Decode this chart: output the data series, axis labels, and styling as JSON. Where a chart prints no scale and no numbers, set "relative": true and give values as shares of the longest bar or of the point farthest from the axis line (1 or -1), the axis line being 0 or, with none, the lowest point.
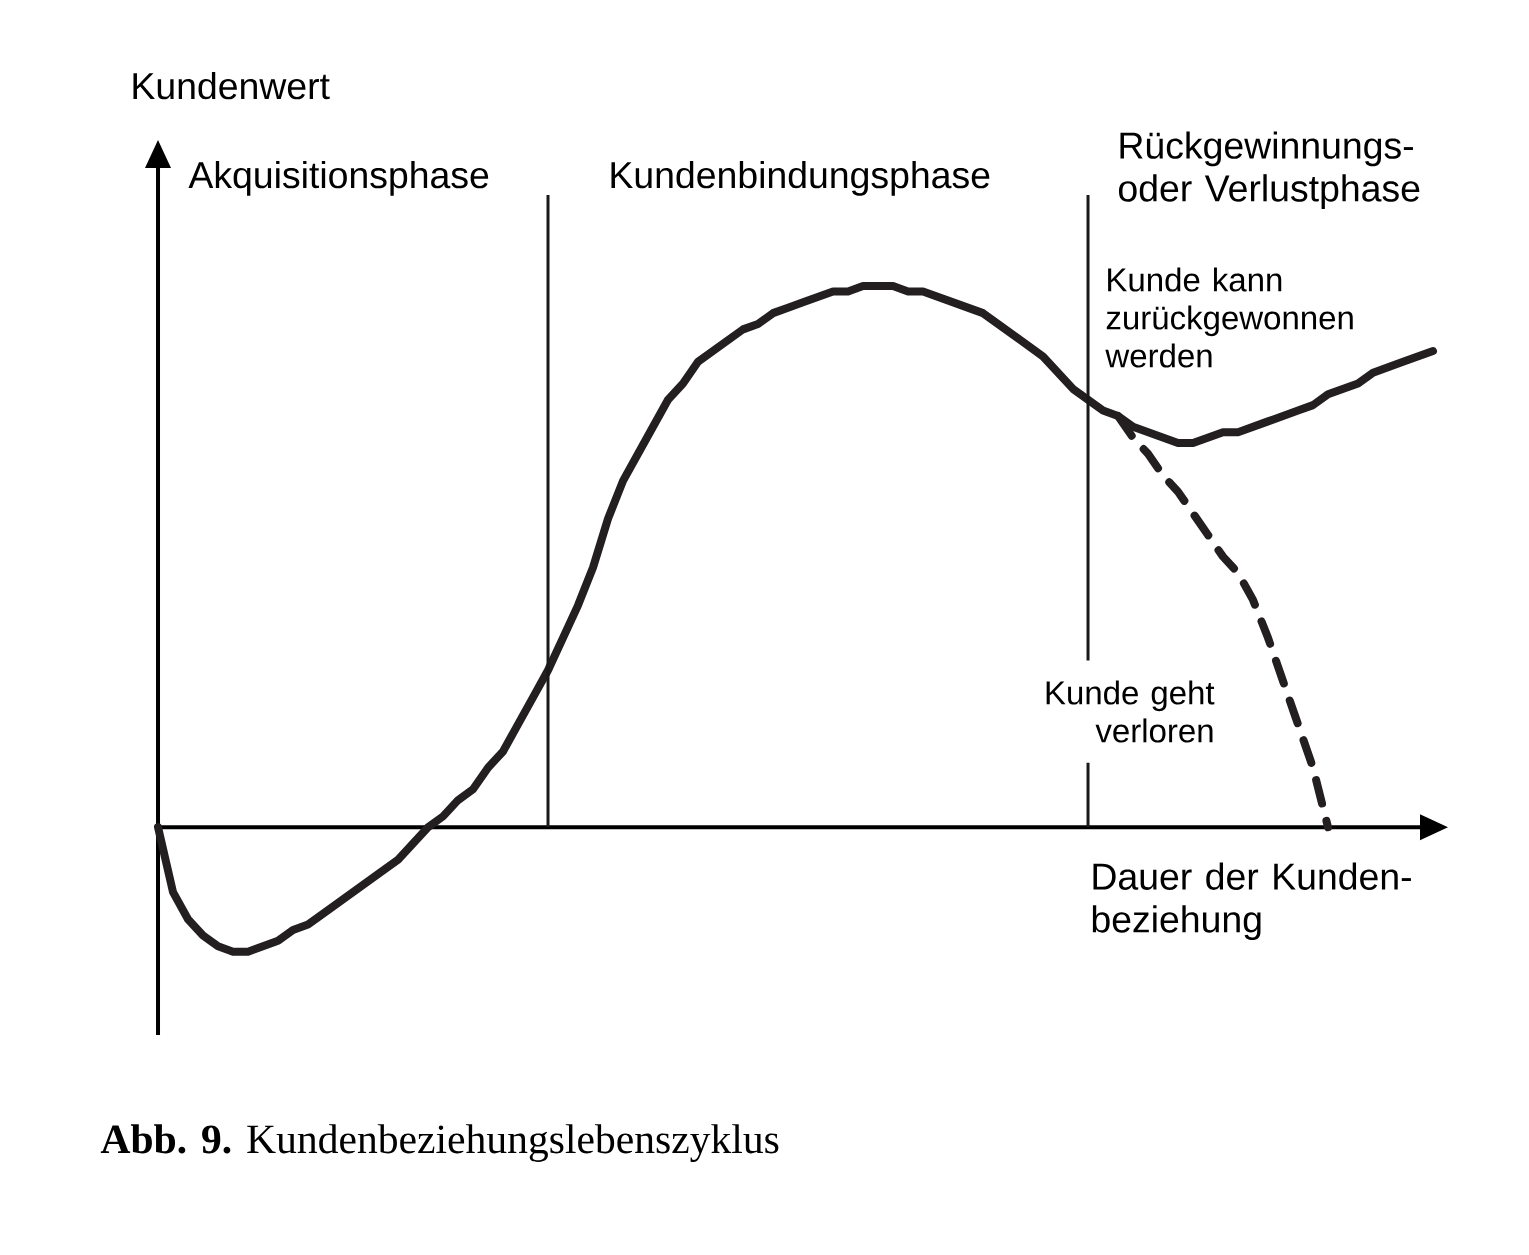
{
  "chart_data": {
    "type": "line",
    "relative": true,
    "xlabel": "Dauer der Kunden- beziehung",
    "ylabel": "Kundenwert",
    "annotations": [
      "Akquisitionsphase",
      "Kundenbindungsphase",
      "Rückgewinnungs- oder Verlustphase",
      "Kunde kann zurückgewonnen werden",
      "Kunde geht verloren",
      "**Abb. 9.** Kundenbeziehungslebenszyklus"
    ],
    "categories": [
      null,
      null,
      null,
      null,
      null,
      null,
      null,
      null,
      null,
      null,
      null,
      null,
      null,
      null,
      null,
      null,
      null,
      null,
      null,
      null,
      null,
      null,
      null,
      null,
      null,
      null,
      null,
      null,
      null,
      null,
      null,
      null,
      null,
      null,
      null,
      null,
      null,
      null,
      null,
      null,
      null,
      null,
      null,
      null,
      null,
      null,
      null,
      null,
      null,
      null,
      null,
      null,
      null,
      null,
      null,
      null,
      null,
      null,
      null,
      null,
      null,
      null,
      null,
      null,
      null,
      null,
      null,
      null,
      null,
      null,
      null,
      null,
      null,
      null,
      null,
      null,
      null,
      null,
      null,
      null,
      null,
      null,
      null,
      null,
      null,
      null
    ],
    "series": [
      {
        "color": "#231f20",
        "line_style": "solid",
        "values": [
          0,
          -0.12,
          -0.17,
          -0.2,
          -0.22,
          -0.23,
          -0.23,
          -0.22,
          -0.21,
          -0.19,
          -0.18,
          -0.16,
          -0.14,
          -0.12,
          -0.1,
          -0.08,
          -0.06,
          -0.03,
          0,
          0.02,
          0.05,
          0.07,
          0.11,
          0.14,
          0.19,
          0.24,
          0.29,
          0.35,
          0.41,
          0.48,
          0.57,
          0.64,
          0.69,
          0.74,
          0.79,
          0.82,
          0.86,
          0.88,
          0.9,
          0.92,
          0.93,
          0.95,
          0.96,
          0.97,
          0.98,
          0.99,
          0.99,
          1,
          1,
          1,
          0.99,
          0.99,
          0.98,
          0.97,
          0.96,
          0.95,
          0.93,
          0.91,
          0.89,
          0.87,
          0.84,
          0.81,
          0.79,
          0.77,
          0.76,
          0.74,
          0.73,
          0.72,
          0.71,
          0.71,
          0.72,
          0.73,
          0.73,
          0.74,
          0.75,
          0.76,
          0.77,
          0.78,
          0.8,
          0.81,
          0.82,
          0.84,
          0.85,
          0.86,
          0.87,
          0.88
        ]
      },
      {
        "color": "#231f20",
        "line_style": "dashed",
        "values": [
          null,
          null,
          null,
          null,
          null,
          null,
          null,
          null,
          null,
          null,
          null,
          null,
          null,
          null,
          null,
          null,
          null,
          null,
          null,
          null,
          null,
          null,
          null,
          null,
          null,
          null,
          null,
          null,
          null,
          null,
          null,
          null,
          null,
          null,
          null,
          null,
          null,
          null,
          null,
          null,
          null,
          null,
          null,
          null,
          null,
          null,
          null,
          null,
          null,
          null,
          null,
          null,
          null,
          null,
          null,
          null,
          null,
          null,
          null,
          null,
          null,
          null,
          null,
          null,
          0.76,
          0.72,
          0.69,
          0.65,
          0.62,
          0.58,
          0.54,
          0.5,
          0.47,
          0.42,
          0.35,
          0.27,
          0.19,
          0.11,
          0,
          null,
          null,
          null,
          null,
          null,
          null,
          null
        ]
      }
    ]
  }
}
